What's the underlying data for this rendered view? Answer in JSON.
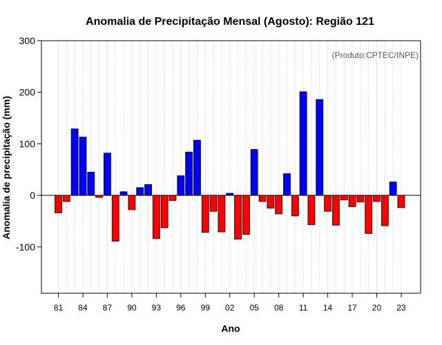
{
  "chart_data": {
    "type": "bar",
    "title": "Anomalia de Precipitação Mensal (Agosto): Região 121",
    "xlabel": "Ano",
    "ylabel": "Anomalia de precipitação (mm)",
    "source_note": "(Produto:CPTEC/INPE)",
    "ylim": [
      -190,
      300
    ],
    "yticks": [
      -100,
      0,
      100,
      200,
      300
    ],
    "xtick_labels": [
      "81",
      "84",
      "87",
      "90",
      "93",
      "96",
      "99",
      "02",
      "05",
      "08",
      "11",
      "14",
      "17",
      "20",
      "23"
    ],
    "positive_color": "#0000ff",
    "negative_color": "#ff0000",
    "categories": [
      "1981",
      "1982",
      "1983",
      "1984",
      "1985",
      "1986",
      "1987",
      "1988",
      "1989",
      "1990",
      "1991",
      "1992",
      "1993",
      "1994",
      "1995",
      "1996",
      "1997",
      "1998",
      "1999",
      "2000",
      "2001",
      "2002",
      "2003",
      "2004",
      "2005",
      "2006",
      "2007",
      "2008",
      "2009",
      "2010",
      "2011",
      "2012",
      "2013",
      "2014",
      "2015",
      "2016",
      "2017",
      "2018",
      "2019",
      "2020",
      "2021",
      "2022",
      "2023"
    ],
    "values": [
      -34,
      -12,
      129,
      113,
      45,
      -4,
      82,
      -89,
      7,
      -28,
      15,
      21,
      -84,
      -63,
      -10,
      38,
      84,
      107,
      -72,
      -31,
      -71,
      4,
      -85,
      -76,
      89,
      -12,
      -25,
      -36,
      42,
      -40,
      201,
      -57,
      186,
      -31,
      -58,
      -9,
      -22,
      -13,
      -74,
      -12,
      -59,
      26,
      -24
    ]
  }
}
